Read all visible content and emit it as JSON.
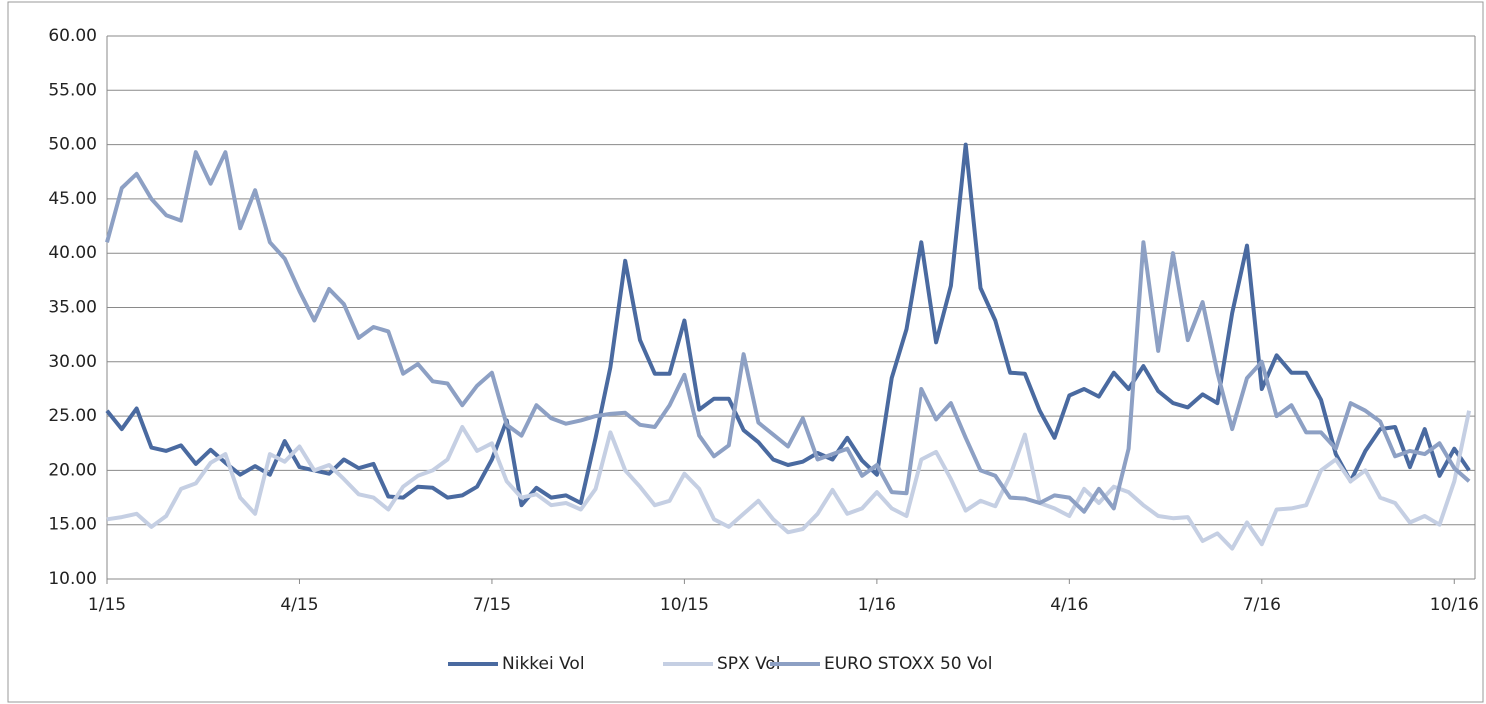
{
  "chart_data": {
    "type": "line",
    "x": [
      0,
      1,
      2,
      3,
      4,
      5,
      6,
      7,
      8,
      9,
      10,
      11,
      12,
      13,
      14,
      15,
      16,
      17,
      18,
      19,
      20,
      21,
      22,
      23,
      24,
      25,
      26,
      27,
      28,
      29,
      30,
      31,
      32,
      33,
      34,
      35,
      36,
      37,
      38,
      39,
      40,
      41,
      42,
      43,
      44,
      45,
      46,
      47,
      48,
      49,
      50,
      51,
      52,
      53,
      54,
      55,
      56,
      57,
      58,
      59,
      60,
      61,
      62,
      63,
      64,
      65,
      66,
      67,
      68,
      69,
      70,
      71,
      72,
      73,
      74,
      75,
      76,
      77,
      78,
      79,
      80,
      81,
      82,
      83,
      84,
      85,
      86,
      87,
      88,
      89,
      90,
      91,
      92
    ],
    "xlim": [
      0,
      92.4
    ],
    "xticks": [
      {
        "value": 0,
        "label": "1/15"
      },
      {
        "value": 13,
        "label": "4/15"
      },
      {
        "value": 26,
        "label": "7/15"
      },
      {
        "value": 39,
        "label": "10/15"
      },
      {
        "value": 52,
        "label": "1/16"
      },
      {
        "value": 65,
        "label": "4/16"
      },
      {
        "value": 78,
        "label": "7/16"
      },
      {
        "value": 91,
        "label": "10/16"
      }
    ],
    "ylim": [
      10,
      60
    ],
    "yticks": [
      {
        "value": 10,
        "label": "10.00"
      },
      {
        "value": 15,
        "label": "15.00"
      },
      {
        "value": 20,
        "label": "20.00"
      },
      {
        "value": 25,
        "label": "25.00"
      },
      {
        "value": 30,
        "label": "30.00"
      },
      {
        "value": 35,
        "label": "35.00"
      },
      {
        "value": 40,
        "label": "40.00"
      },
      {
        "value": 45,
        "label": "45.00"
      },
      {
        "value": 50,
        "label": "50.00"
      },
      {
        "value": 55,
        "label": "55.00"
      },
      {
        "value": 60,
        "label": "60.00"
      }
    ],
    "grid": true,
    "legend": "bottom",
    "series": [
      {
        "name": "Nikkei Vol",
        "color": "#4a6aa0",
        "values": [
          25.5,
          23.8,
          25.7,
          22.1,
          21.8,
          22.3,
          20.6,
          21.9,
          20.7,
          19.6,
          20.4,
          19.6,
          22.7,
          20.3,
          20.0,
          19.7,
          21.0,
          20.2,
          20.6,
          17.6,
          17.5,
          18.5,
          18.4,
          17.5,
          17.7,
          18.5,
          21.0,
          24.6,
          16.8,
          18.4,
          17.5,
          17.7,
          17.0,
          23.0,
          29.5,
          39.3,
          32.0,
          28.9,
          28.9,
          33.8,
          25.6,
          26.6,
          26.6,
          23.7,
          22.6,
          21.0,
          20.5,
          20.8,
          21.6,
          21.0,
          23.0,
          20.9,
          19.6,
          28.5,
          33.0,
          41.0,
          31.8,
          37.0,
          50.0,
          36.8,
          33.8,
          29.0,
          28.9,
          25.5,
          23.0,
          26.9,
          27.5,
          26.8,
          29.0,
          27.5,
          29.6,
          27.3,
          26.2,
          25.8,
          27.0,
          26.2,
          34.5,
          40.7,
          27.5,
          30.6,
          29.0,
          29.0,
          26.5,
          21.5,
          19.0,
          21.8,
          23.8,
          24.0,
          20.3,
          23.8,
          19.5,
          22.0,
          20.0
        ]
      },
      {
        "name": "SPX Vol",
        "color": "#c5cfe3",
        "values": [
          15.5,
          15.7,
          16.0,
          14.8,
          15.8,
          18.3,
          18.8,
          20.7,
          21.5,
          17.5,
          16.0,
          21.5,
          20.8,
          22.2,
          20.0,
          20.5,
          19.2,
          17.8,
          17.5,
          16.4,
          18.5,
          19.5,
          20.0,
          21.0,
          24.0,
          21.8,
          22.5,
          19.0,
          17.5,
          17.8,
          16.8,
          17.0,
          16.4,
          18.3,
          23.5,
          20.0,
          18.5,
          16.8,
          17.2,
          19.7,
          18.3,
          15.5,
          14.8,
          16.0,
          17.2,
          15.5,
          14.3,
          14.6,
          16.0,
          18.2,
          16.0,
          16.5,
          18.0,
          16.5,
          15.8,
          21.0,
          21.7,
          19.2,
          16.3,
          17.2,
          16.7,
          19.5,
          23.3,
          17.0,
          16.5,
          15.8,
          18.3,
          17.0,
          18.5,
          18.0,
          16.8,
          15.8,
          15.6,
          15.7,
          13.5,
          14.2,
          12.8,
          15.2,
          13.2,
          16.4,
          16.5,
          16.8,
          20.0,
          21.0,
          19.0,
          20.0,
          17.5,
          17.0,
          15.2,
          15.8,
          15.0,
          19.0,
          25.5
        ]
      },
      {
        "name": "EURO STOXX 50 Vol",
        "color": "#8da0c4",
        "values": [
          41,
          46,
          47.3,
          45,
          43.5,
          43,
          49.3,
          46.4,
          49.3,
          42.3,
          45.8,
          41,
          39.5,
          36.5,
          33.8,
          36.7,
          35.3,
          32.2,
          33.2,
          32.8,
          28.9,
          29.8,
          28.2,
          28,
          26,
          27.8,
          29,
          24.2,
          23.2,
          26,
          24.8,
          24.3,
          24.6,
          25,
          25.2,
          25.3,
          24.2,
          24,
          26,
          28.8,
          23.2,
          21.3,
          22.3,
          30.7,
          24.4,
          23.3,
          22.2,
          24.8,
          21,
          21.5,
          22,
          19.5,
          20.5,
          18,
          17.9,
          27.5,
          24.7,
          26.2,
          23,
          20,
          19.5,
          17.5,
          17.4,
          17,
          17.7,
          17.5,
          16.2,
          18.3,
          16.5,
          22,
          41,
          31,
          40,
          32,
          35.5,
          29,
          23.8,
          28.5,
          30,
          25,
          26,
          23.5,
          23.5,
          22,
          26.2,
          25.5,
          24.5,
          21.3,
          21.8,
          21.5,
          22.5,
          20.2,
          19
        ]
      }
    ]
  }
}
